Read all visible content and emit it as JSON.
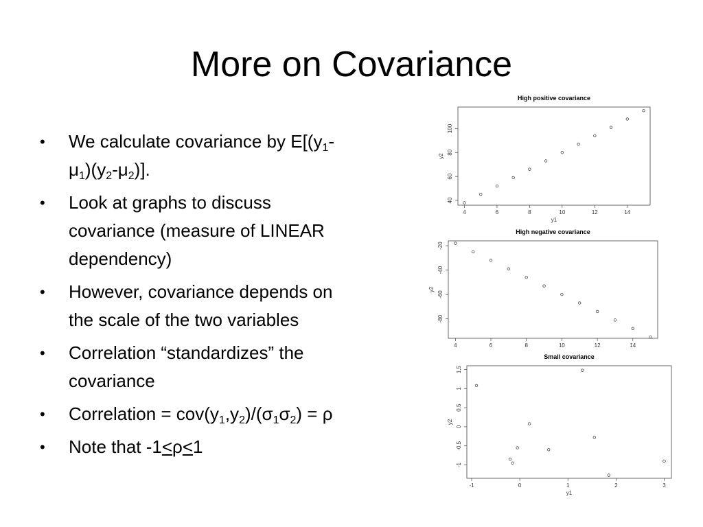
{
  "slide": {
    "title": "More on Covariance",
    "bullets": [
      {
        "parts": [
          {
            "t": "We calculate covariance by E[(y"
          },
          {
            "sub": "1"
          },
          {
            "t": "-μ"
          },
          {
            "sub": "1"
          },
          {
            "t": ")(y"
          },
          {
            "sub": "2"
          },
          {
            "t": "-μ"
          },
          {
            "sub": "2"
          },
          {
            "t": ")]."
          }
        ]
      },
      {
        "parts": [
          {
            "t": "Look at graphs to discuss covariance (measure of LINEAR dependency)"
          }
        ]
      },
      {
        "parts": [
          {
            "t": "However, covariance depends on the scale of the two variables"
          }
        ]
      },
      {
        "parts": [
          {
            "t": "Correlation “standardizes” the covariance"
          }
        ]
      },
      {
        "parts": [
          {
            "t": "Correlation = cov(y"
          },
          {
            "sub": "1"
          },
          {
            "t": ",y"
          },
          {
            "sub": "2"
          },
          {
            "t": ")/(σ"
          },
          {
            "sub": "1"
          },
          {
            "t": "σ"
          },
          {
            "sub": "2"
          },
          {
            "t": ") = ρ"
          }
        ]
      },
      {
        "parts": [
          {
            "t": "Note that -1"
          },
          {
            "u": "<"
          },
          {
            "t": "ρ"
          },
          {
            "u": "<"
          },
          {
            "t": "1"
          }
        ]
      }
    ]
  },
  "chart_data": [
    {
      "type": "scatter",
      "title": "High positive covariance",
      "xlabel": "y1",
      "ylabel": "y2",
      "xticks": [
        4,
        6,
        8,
        10,
        12,
        14
      ],
      "yticks": [
        40,
        60,
        80,
        100
      ],
      "xlim": [
        3.6,
        15.4
      ],
      "ylim": [
        36,
        118
      ],
      "x": [
        4,
        5,
        6,
        7,
        8,
        9,
        10,
        11,
        12,
        13,
        14,
        15
      ],
      "y": [
        38,
        45,
        52,
        59,
        66,
        73,
        80,
        87,
        94,
        101,
        108,
        115
      ]
    },
    {
      "type": "scatter",
      "title": "High negative covariance",
      "xlabel": "",
      "ylabel": "y2",
      "xticks": [
        4,
        6,
        8,
        10,
        12,
        14
      ],
      "yticks": [
        -20,
        -40,
        -60,
        -80
      ],
      "xlim": [
        3.6,
        15.4
      ],
      "ylim": [
        -96,
        -16
      ],
      "x": [
        4,
        5,
        6,
        7,
        8,
        9,
        10,
        11,
        12,
        13,
        14,
        15
      ],
      "y": [
        -18,
        -25,
        -32,
        -39,
        -46,
        -53,
        -60,
        -67,
        -74,
        -81,
        -88,
        -95
      ]
    },
    {
      "type": "scatter",
      "title": "Small covariance",
      "xlabel": "y1",
      "ylabel": "y2",
      "xticks": [
        -1,
        0,
        1,
        2,
        3
      ],
      "yticks": [
        1.5,
        1.0,
        0.5,
        0.0,
        -0.5,
        -1.0
      ],
      "xlim": [
        -1.1,
        3.15
      ],
      "ylim": [
        -1.35,
        1.6
      ],
      "x": [
        -0.9,
        1.3,
        0.2,
        -0.05,
        -0.15,
        -0.2,
        0.6,
        1.55,
        3.0,
        1.85
      ],
      "y": [
        1.08,
        1.48,
        0.08,
        -0.55,
        -0.95,
        -0.85,
        -0.6,
        -0.28,
        -0.9,
        -1.27
      ]
    }
  ]
}
